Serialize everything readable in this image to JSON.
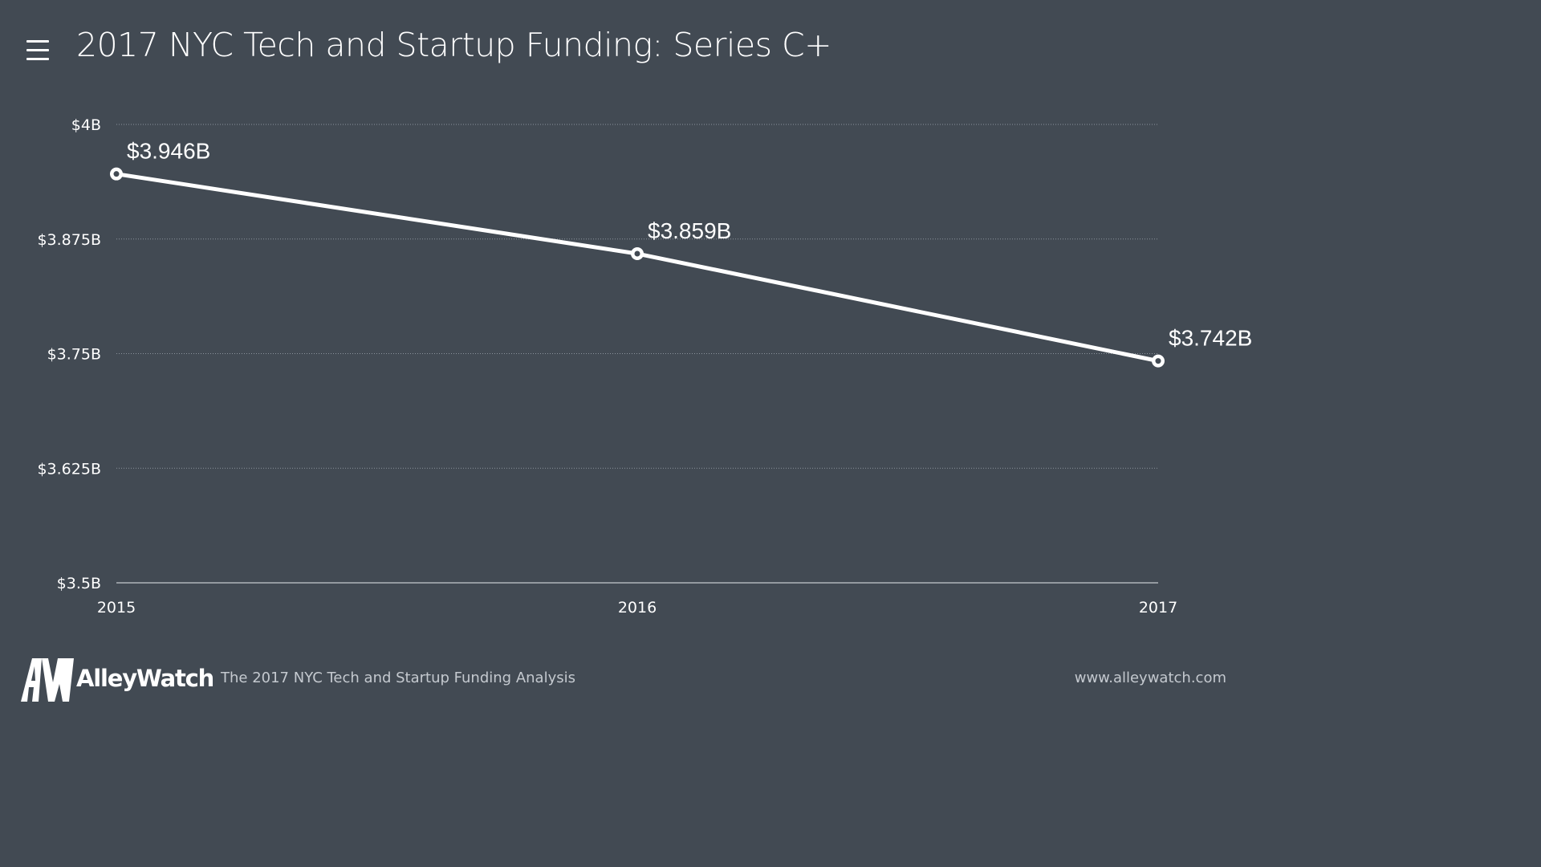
{
  "header": {
    "title": "2017 NYC Tech and Startup Funding: Series C+",
    "menu_icon": "hamburger-menu-icon"
  },
  "chart_data": {
    "type": "line",
    "title": "2017 NYC Tech and Startup Funding: Series C+",
    "categories": [
      "2015",
      "2016",
      "2017"
    ],
    "series": [
      {
        "name": "Series C+",
        "values": [
          3.946,
          3.859,
          3.742
        ],
        "labels": [
          "$3.946B",
          "$3.859B",
          "$3.742B"
        ]
      }
    ],
    "ylim": [
      3.5,
      4.0
    ],
    "yticks": [
      3.5,
      3.625,
      3.75,
      3.875,
      4.0
    ],
    "ytick_labels": [
      "$3.5B",
      "$3.625B",
      "$3.75B",
      "$3.875B",
      "$4B"
    ],
    "xlabel": "",
    "ylabel": "",
    "grid": true,
    "colors": {
      "line": "#ffffff",
      "grid": "#8b939c",
      "background": "#424a53"
    }
  },
  "footer": {
    "brand_name": "AlleyWatch",
    "caption": "The 2017 NYC Tech and Startup Funding Analysis",
    "url": "www.alleywatch.com"
  }
}
